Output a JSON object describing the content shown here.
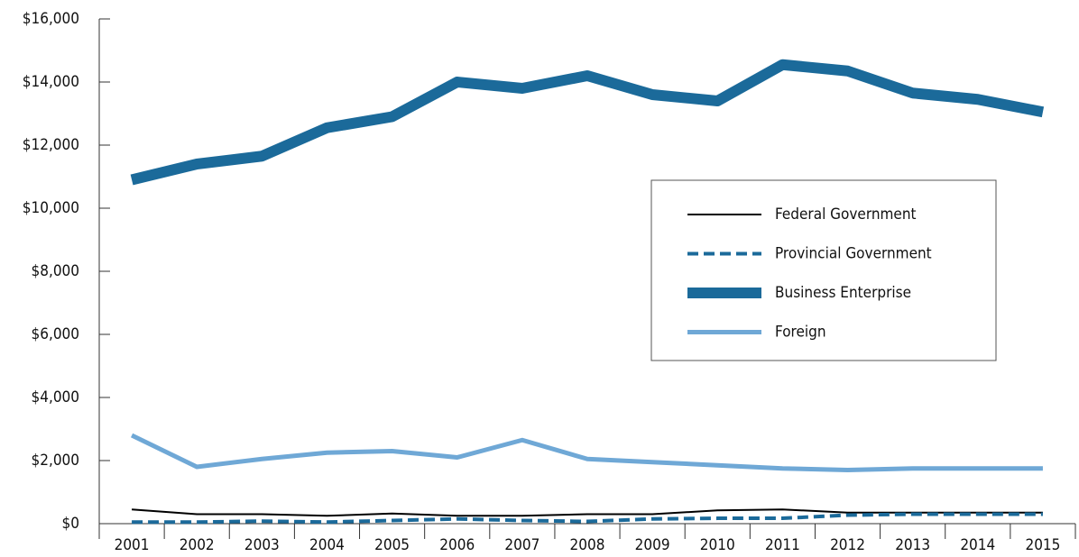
{
  "chart_data": {
    "type": "line",
    "categories": [
      "2001",
      "2002",
      "2003",
      "2004",
      "2005",
      "2006",
      "2007",
      "2008",
      "2009",
      "2010",
      "2011",
      "2012",
      "2013",
      "2014",
      "2015"
    ],
    "series": [
      {
        "name": "Federal Government",
        "color": "#000000",
        "linewidth": 2,
        "linestyle": "solid",
        "values": [
          450,
          300,
          300,
          250,
          320,
          250,
          250,
          300,
          300,
          420,
          450,
          350,
          350,
          350,
          350
        ]
      },
      {
        "name": "Provincial Government",
        "color": "#1b6a9a",
        "linewidth": 4,
        "linestyle": "dashed",
        "values": [
          50,
          50,
          80,
          50,
          100,
          150,
          100,
          70,
          150,
          170,
          170,
          270,
          300,
          300,
          300
        ]
      },
      {
        "name": "Business Enterprise",
        "color": "#1b6a9a",
        "linewidth": 12,
        "linestyle": "solid",
        "values": [
          10900,
          11400,
          11650,
          12550,
          12900,
          14000,
          13800,
          14200,
          13600,
          13400,
          14550,
          14350,
          13650,
          13450,
          13050
        ]
      },
      {
        "name": "Foreign",
        "color": "#6fa8d6",
        "linewidth": 5,
        "linestyle": "solid",
        "values": [
          2800,
          1800,
          2050,
          2250,
          2300,
          2100,
          2650,
          2050,
          1950,
          1850,
          1750,
          1700,
          1750,
          1750,
          1750
        ]
      }
    ],
    "ylim": [
      0,
      16000
    ],
    "yticks": [
      {
        "value": 0,
        "label": "$0"
      },
      {
        "value": 2000,
        "label": "$2,000"
      },
      {
        "value": 4000,
        "label": "$4,000"
      },
      {
        "value": 6000,
        "label": "$6,000"
      },
      {
        "value": 8000,
        "label": "$8,000"
      },
      {
        "value": 10000,
        "label": "$10,000"
      },
      {
        "value": 12000,
        "label": "$12,000"
      },
      {
        "value": 14000,
        "label": "$14,000"
      },
      {
        "value": 16000,
        "label": "$16,000"
      }
    ],
    "grid": false,
    "legend": "right"
  }
}
